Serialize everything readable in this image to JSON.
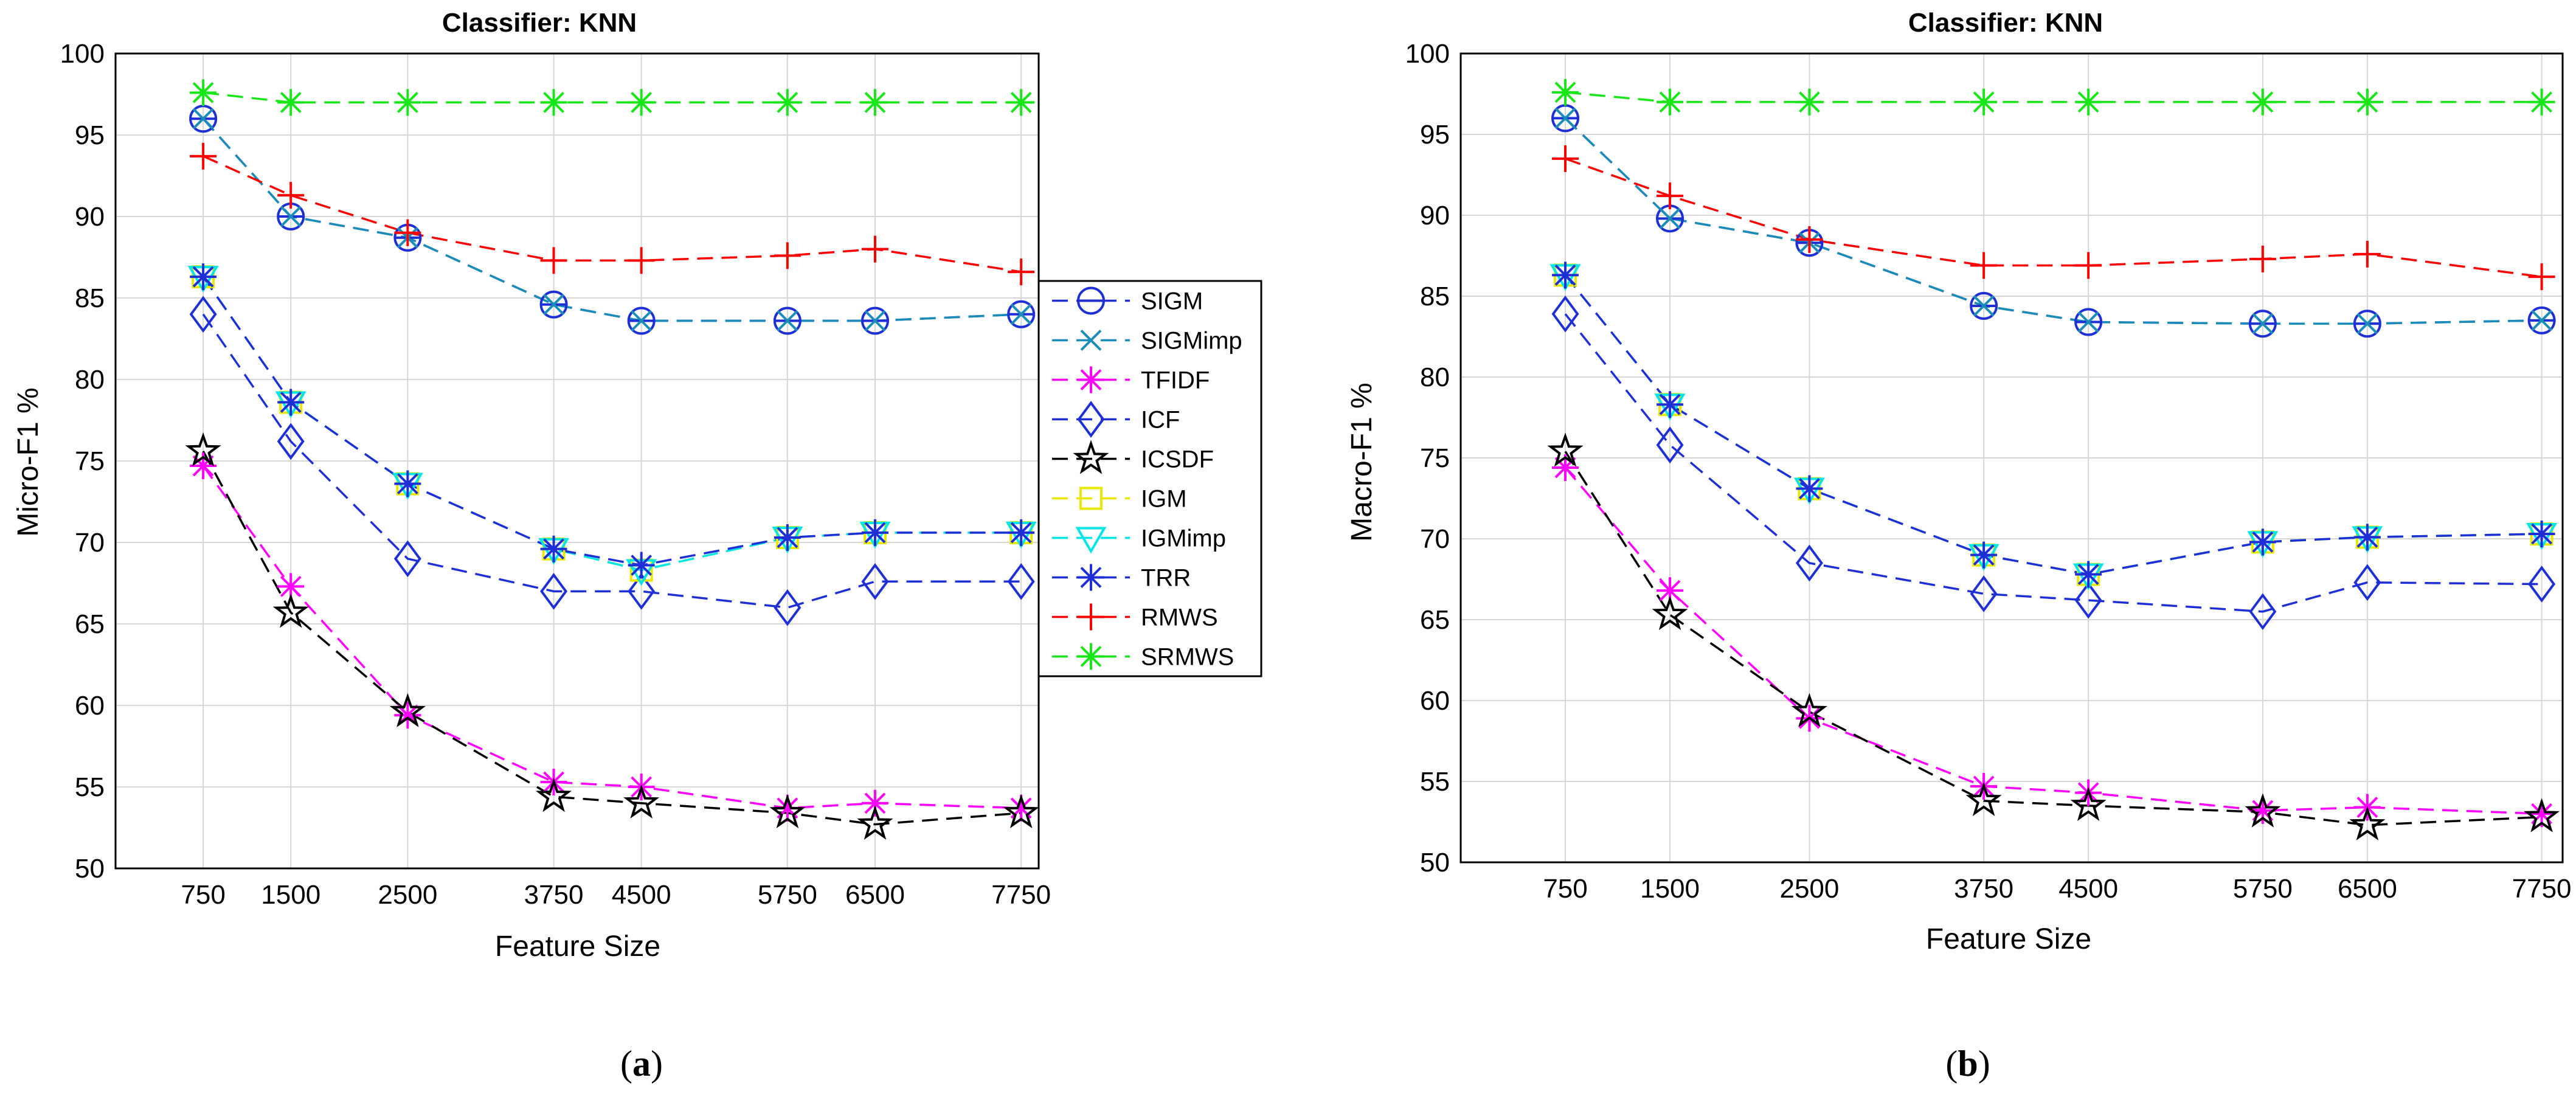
{
  "chart_data": [
    {
      "type": "line",
      "panel": "a",
      "title": "Classifier: KNN",
      "xlabel": "Feature Size",
      "ylabel": "Micro-F1 %",
      "x": [
        750,
        1500,
        2500,
        3750,
        4500,
        5750,
        6500,
        7750
      ],
      "x_tick_labels": [
        "750",
        "1500",
        "2500",
        "3750",
        "4500",
        "5750",
        "6500",
        "7750"
      ],
      "xlim": [
        0,
        7900
      ],
      "ylim": [
        50,
        100
      ],
      "y_ticks": [
        50,
        55,
        60,
        65,
        70,
        75,
        80,
        85,
        90,
        95,
        100
      ],
      "grid": true,
      "legend": "right, outside",
      "series": [
        {
          "name": "SIGM",
          "values": [
            96,
            90,
            88.7,
            84.6,
            83.6,
            83.6,
            83.6,
            84
          ]
        },
        {
          "name": "SIGMimp",
          "values": [
            96,
            90,
            88.7,
            84.6,
            83.6,
            83.6,
            83.6,
            84
          ]
        },
        {
          "name": "TFIDF",
          "values": [
            74.7,
            67.3,
            59.4,
            55.3,
            55,
            53.7,
            54,
            53.7
          ]
        },
        {
          "name": "ICF",
          "values": [
            84,
            76.2,
            69,
            67,
            67,
            66,
            67.6,
            67.6
          ]
        },
        {
          "name": "ICSDF",
          "values": [
            75.6,
            65.7,
            59.6,
            54.4,
            54,
            53.4,
            52.7,
            53.4
          ]
        },
        {
          "name": "IGM",
          "values": [
            86.3,
            78.6,
            73.6,
            69.6,
            68.3,
            70.3,
            70.6,
            70.6
          ]
        },
        {
          "name": "IGMimp",
          "values": [
            86.3,
            78.6,
            73.6,
            69.6,
            68.3,
            70.3,
            70.6,
            70.6
          ]
        },
        {
          "name": "TRR",
          "values": [
            86.3,
            78.6,
            73.6,
            69.6,
            68.6,
            70.3,
            70.6,
            70.6
          ]
        },
        {
          "name": "RMWS",
          "values": [
            93.7,
            91.3,
            89,
            87.3,
            87.3,
            87.6,
            88,
            86.6
          ]
        },
        {
          "name": "SRMWS",
          "values": [
            97.6,
            97,
            97,
            97,
            97,
            97,
            97,
            97
          ]
        }
      ]
    },
    {
      "type": "line",
      "panel": "b",
      "title": "Classifier: KNN",
      "xlabel": "Feature Size",
      "ylabel": "Macro-F1 %",
      "x": [
        750,
        1500,
        2500,
        3750,
        4500,
        5750,
        6500,
        7750
      ],
      "x_tick_labels": [
        "750",
        "1500",
        "2500",
        "3750",
        "4500",
        "5750",
        "6500",
        "7750"
      ],
      "xlim": [
        0,
        7900
      ],
      "ylim": [
        50,
        100
      ],
      "y_ticks": [
        50,
        55,
        60,
        65,
        70,
        75,
        80,
        85,
        90,
        95,
        100
      ],
      "grid": true,
      "series": [
        {
          "name": "SIGM",
          "values": [
            96,
            89.8,
            88.3,
            84.4,
            83.4,
            83.3,
            83.3,
            83.5
          ]
        },
        {
          "name": "SIGMimp",
          "values": [
            96,
            89.8,
            88.3,
            84.4,
            83.4,
            83.3,
            83.3,
            83.5
          ]
        },
        {
          "name": "TFIDF",
          "values": [
            74.4,
            66.8,
            58.9,
            54.7,
            54.3,
            53.2,
            53.4,
            53
          ]
        },
        {
          "name": "ICF",
          "values": [
            83.9,
            75.8,
            68.5,
            66.6,
            66.2,
            65.5,
            67.3,
            67.2
          ]
        },
        {
          "name": "ICSDF",
          "values": [
            75.4,
            65.3,
            59.3,
            53.8,
            53.5,
            53.1,
            52.3,
            52.8
          ]
        },
        {
          "name": "IGM",
          "values": [
            86.3,
            78.3,
            73.1,
            69,
            67.8,
            69.8,
            70.1,
            70.3
          ]
        },
        {
          "name": "IGMimp",
          "values": [
            86.3,
            78.3,
            73.1,
            69,
            67.8,
            69.8,
            70.1,
            70.3
          ]
        },
        {
          "name": "TRR",
          "values": [
            86.3,
            78.3,
            73.1,
            69,
            67.8,
            69.8,
            70.1,
            70.3
          ]
        },
        {
          "name": "RMWS",
          "values": [
            93.5,
            91.2,
            88.5,
            86.9,
            86.9,
            87.3,
            87.6,
            86.2
          ]
        },
        {
          "name": "SRMWS",
          "values": [
            97.6,
            97,
            97,
            97,
            97,
            97,
            97,
            97
          ]
        }
      ]
    }
  ],
  "series_styles": [
    {
      "name": "SIGM",
      "color": "#1f2fd6",
      "marker": "circle-bar"
    },
    {
      "name": "SIGMimp",
      "color": "#1a8cb8",
      "marker": "x"
    },
    {
      "name": "TFIDF",
      "color": "#ff00ff",
      "marker": "asterisk"
    },
    {
      "name": "ICF",
      "color": "#1f2fd6",
      "marker": "diamond"
    },
    {
      "name": "ICSDF",
      "color": "#000000",
      "marker": "star"
    },
    {
      "name": "IGM",
      "color": "#e8e800",
      "marker": "square"
    },
    {
      "name": "IGMimp",
      "color": "#00e5e5",
      "marker": "triangle-down"
    },
    {
      "name": "TRR",
      "color": "#1f2fd6",
      "marker": "asterisk"
    },
    {
      "name": "RMWS",
      "color": "#ff0000",
      "marker": "plus"
    },
    {
      "name": "SRMWS",
      "color": "#19e619",
      "marker": "asterisk"
    }
  ],
  "captions": [
    "a",
    "b"
  ]
}
